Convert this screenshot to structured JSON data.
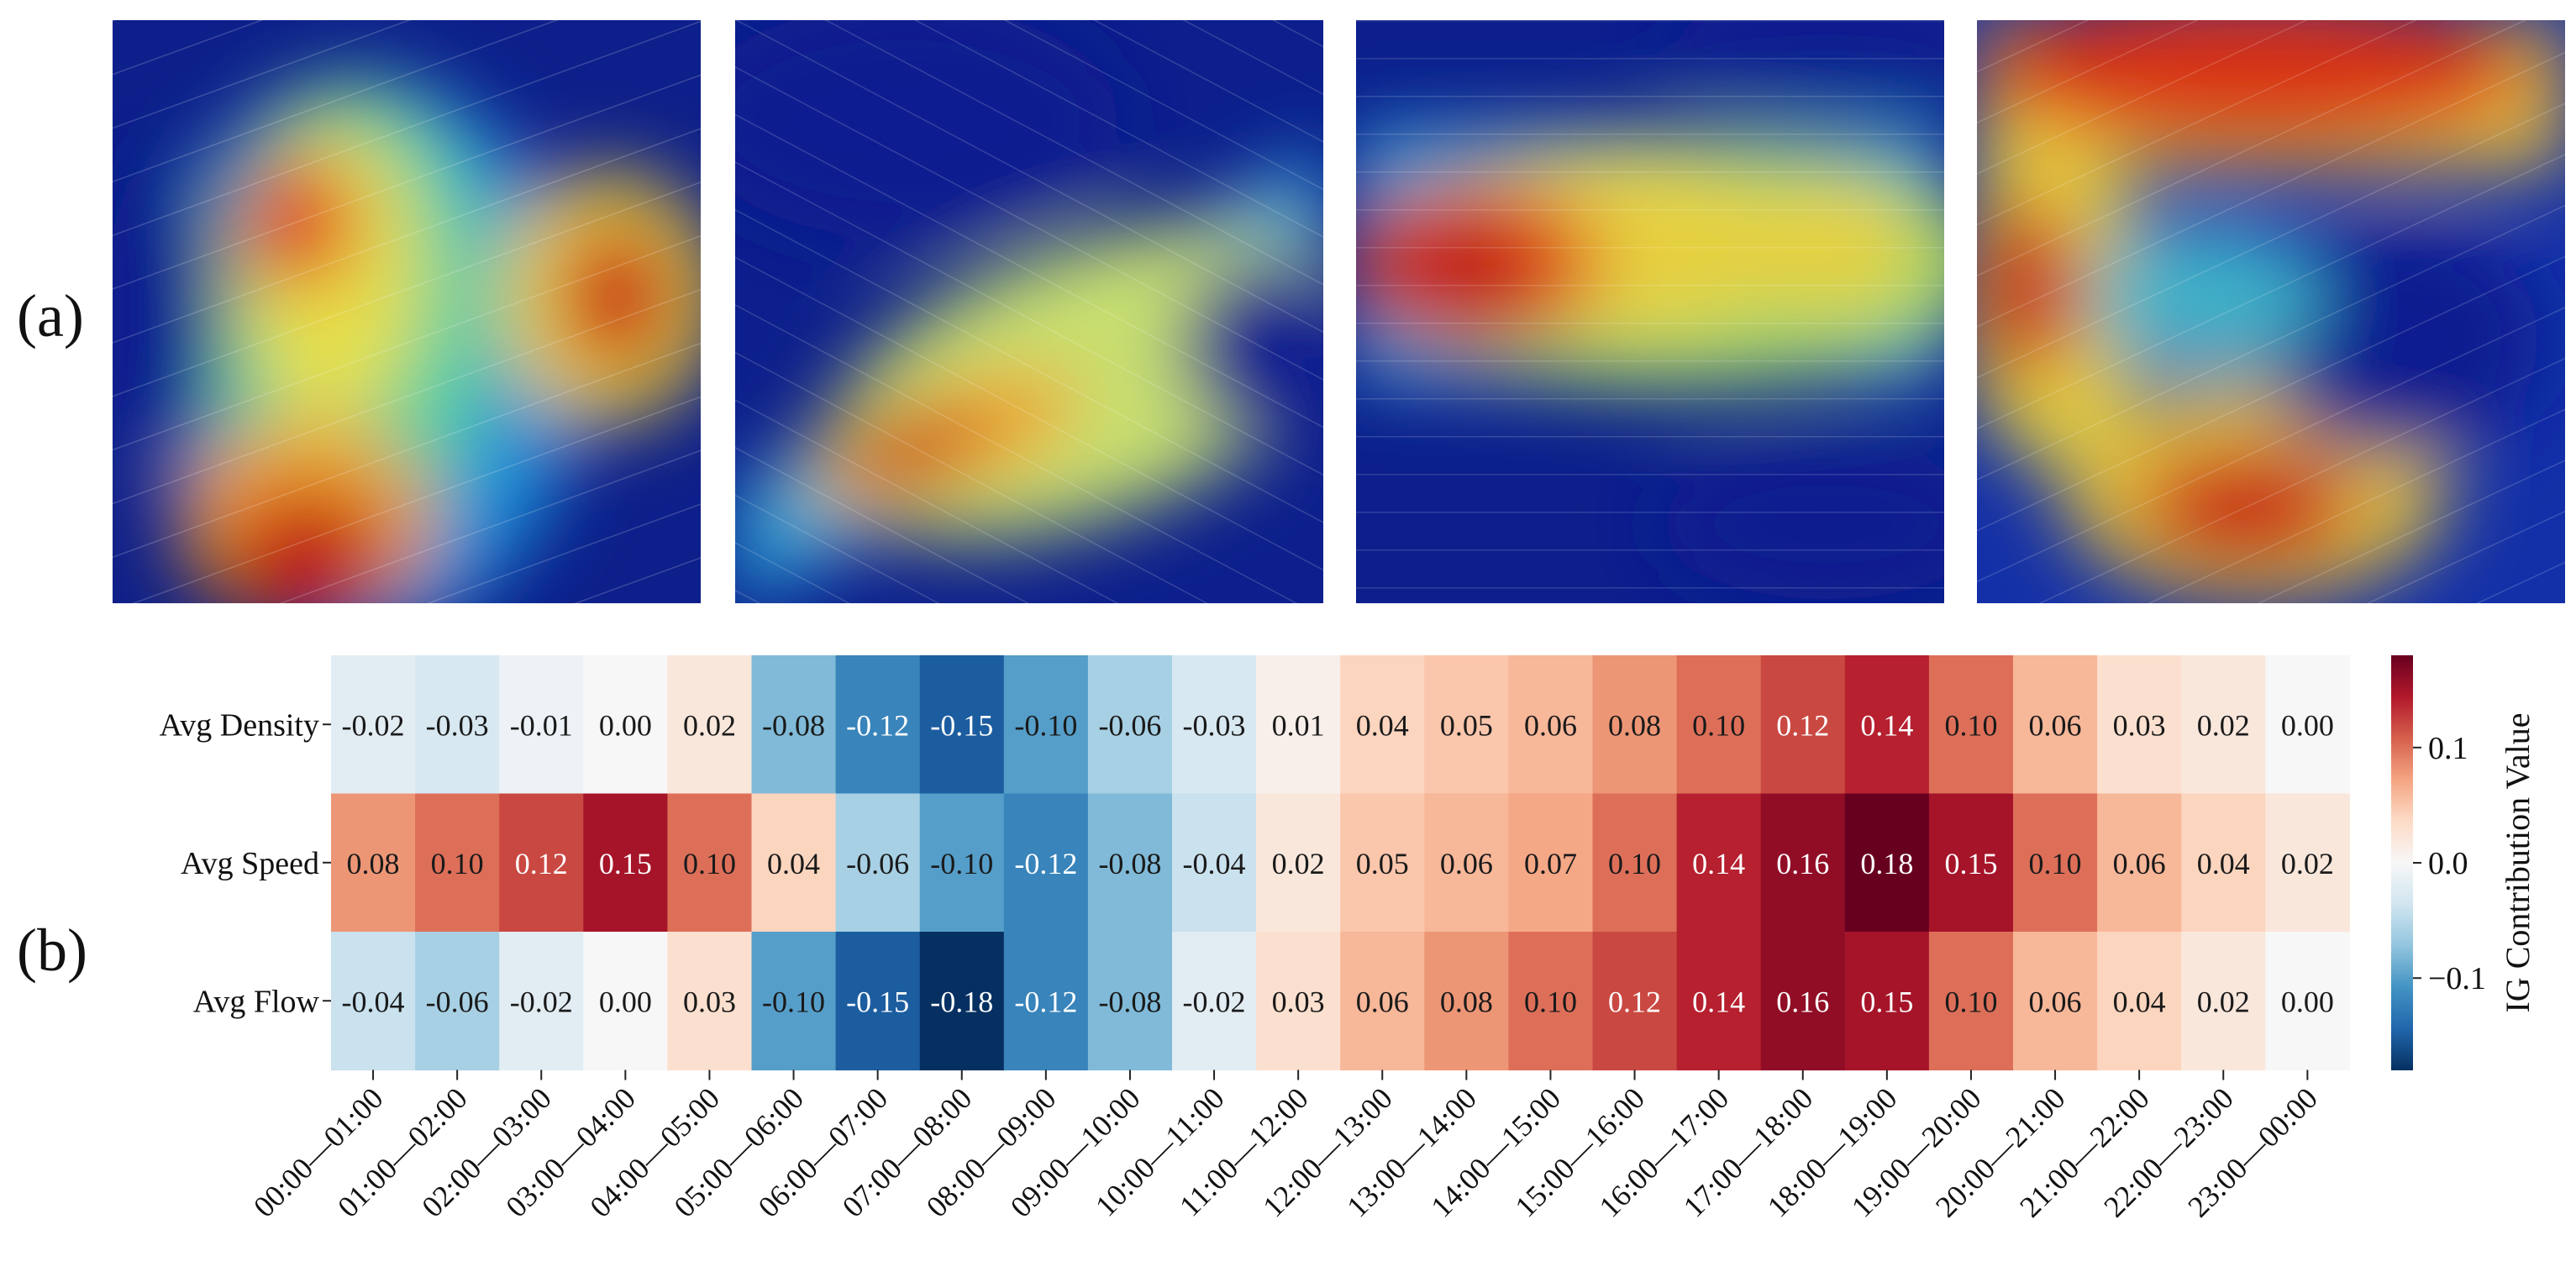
{
  "panels": {
    "a": "(a)",
    "b": "(b)"
  },
  "chart_data": {
    "type": "heatmap",
    "rows": [
      "Avg Density",
      "Avg Speed",
      "Avg Flow"
    ],
    "columns": [
      "00:00—01:00",
      "01:00—02:00",
      "02:00—03:00",
      "03:00—04:00",
      "04:00—05:00",
      "05:00—06:00",
      "06:00—07:00",
      "07:00—08:00",
      "08:00—09:00",
      "09:00—10:00",
      "10:00—11:00",
      "11:00—12:00",
      "12:00—13:00",
      "13:00—14:00",
      "14:00—15:00",
      "15:00—16:00",
      "16:00—17:00",
      "17:00—18:00",
      "18:00—19:00",
      "19:00—20:00",
      "20:00—21:00",
      "21:00—22:00",
      "22:00—23:00",
      "23:00—00:00"
    ],
    "values": [
      [
        -0.02,
        -0.03,
        -0.01,
        0.0,
        0.02,
        -0.08,
        -0.12,
        -0.15,
        -0.1,
        -0.06,
        -0.03,
        0.01,
        0.04,
        0.05,
        0.06,
        0.08,
        0.1,
        0.12,
        0.14,
        0.1,
        0.06,
        0.03,
        0.02,
        0.0
      ],
      [
        0.08,
        0.1,
        0.12,
        0.15,
        0.1,
        0.04,
        -0.06,
        -0.1,
        -0.12,
        -0.08,
        -0.04,
        0.02,
        0.05,
        0.06,
        0.07,
        0.1,
        0.14,
        0.16,
        0.18,
        0.15,
        0.1,
        0.06,
        0.04,
        0.02
      ],
      [
        -0.04,
        -0.06,
        -0.02,
        0.0,
        0.03,
        -0.1,
        -0.15,
        -0.18,
        -0.12,
        -0.08,
        -0.02,
        0.03,
        0.06,
        0.08,
        0.1,
        0.12,
        0.14,
        0.16,
        0.15,
        0.1,
        0.06,
        0.04,
        0.02,
        0.0
      ]
    ],
    "value_labels": [
      [
        "-0.02",
        "-0.03",
        "-0.01",
        "0.00",
        "0.02",
        "-0.08",
        "-0.12",
        "-0.15",
        "-0.10",
        "-0.06",
        "-0.03",
        "0.01",
        "0.04",
        "0.05",
        "0.06",
        "0.08",
        "0.10",
        "0.12",
        "0.14",
        "0.10",
        "0.06",
        "0.03",
        "0.02",
        "0.00"
      ],
      [
        "0.08",
        "0.10",
        "0.12",
        "0.15",
        "0.10",
        "0.04",
        "-0.06",
        "-0.10",
        "-0.12",
        "-0.08",
        "-0.04",
        "0.02",
        "0.05",
        "0.06",
        "0.07",
        "0.10",
        "0.14",
        "0.16",
        "0.18",
        "0.15",
        "0.10",
        "0.06",
        "0.04",
        "0.02"
      ],
      [
        "-0.04",
        "-0.06",
        "-0.02",
        "0.00",
        "0.03",
        "-0.10",
        "-0.15",
        "-0.18",
        "-0.12",
        "-0.08",
        "-0.02",
        "0.03",
        "0.06",
        "0.08",
        "0.10",
        "0.12",
        "0.14",
        "0.16",
        "0.15",
        "0.10",
        "0.06",
        "0.04",
        "0.02",
        "0.00"
      ]
    ],
    "colormap": "RdBu_r",
    "vmin": -0.18,
    "vmax": 0.18,
    "colorbar": {
      "label": "IG Contribution Value",
      "ticks": [
        0.1,
        0.0,
        -0.1
      ],
      "tick_labels": [
        "0.1",
        "0.0",
        "−0.1"
      ]
    }
  }
}
